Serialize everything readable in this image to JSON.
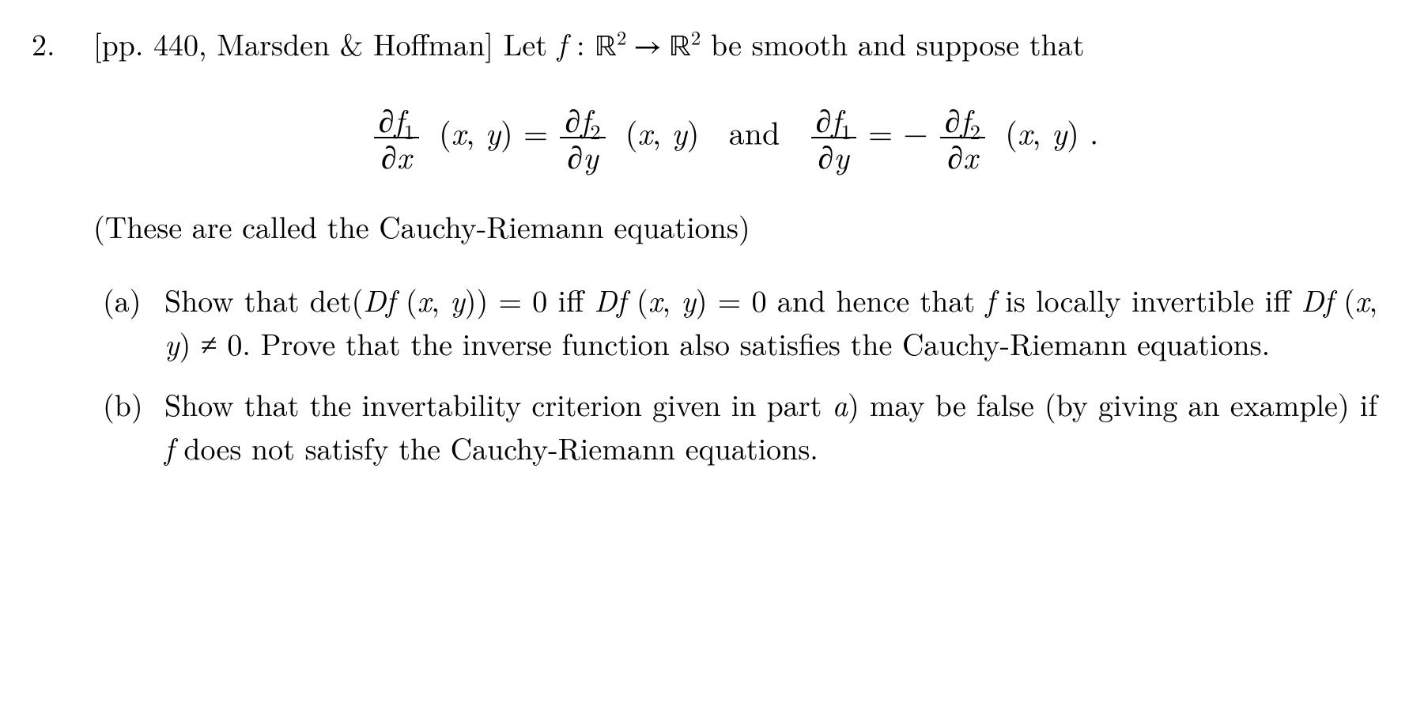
{
  "problem": {
    "number": "2.",
    "intro_ref": "[pp.  440,  Marsden & Hoffman]",
    "intro_text_1": "Let ",
    "f_map_lhs": "f",
    "colon": " : ",
    "R2_1": "ℝ",
    "sup2": "2",
    "arrow": " → ",
    "R2_2": "ℝ",
    "intro_text_2": " be smooth and suppose that",
    "cr_note": "(These are called the Cauchy-Riemann equations)",
    "eq_and": "and",
    "eq_point1": "(x, y)",
    "eq_point2": "(x, y)",
    "eq_point3": "(x, y) .",
    "eq_eq": " = ",
    "eq_eq2": " = ",
    "eq_minus": "−",
    "df1dx_n": "∂f",
    "df1dx_n_sub": "1",
    "df1dx_d": "∂x",
    "df2dy_n": "∂f",
    "df2dy_n_sub": "2",
    "df2dy_d": "∂y",
    "df1dy_n": "∂f",
    "df1dy_n_sub": "1",
    "df1dy_d": "∂y",
    "df2dx_n": "∂f",
    "df2dx_n_sub": "2",
    "df2dx_d": "∂x"
  },
  "sub_a": {
    "label": "(a)",
    "t1": "Show that det(",
    "Df1": "Df",
    "p1": " (x, y)) = 0 iff ",
    "Df2": "Df",
    "p2": " (x, y) = 0 and hence that ",
    "f1": "f",
    "t2": " is locally invertible iff ",
    "Df3": "Df",
    "p3": " (x, y) ≠ 0.  Prove that the inverse function also satisfies the Cauchy-Riemann equations."
  },
  "sub_b": {
    "label": "(b)",
    "t1": "Show that the invertability criterion given in part ",
    "a_it": "a",
    "t2": ") may be false (by giving an example) if ",
    "f1": "f",
    "t3": " does not satisfy the Cauchy-Riemann equations."
  }
}
